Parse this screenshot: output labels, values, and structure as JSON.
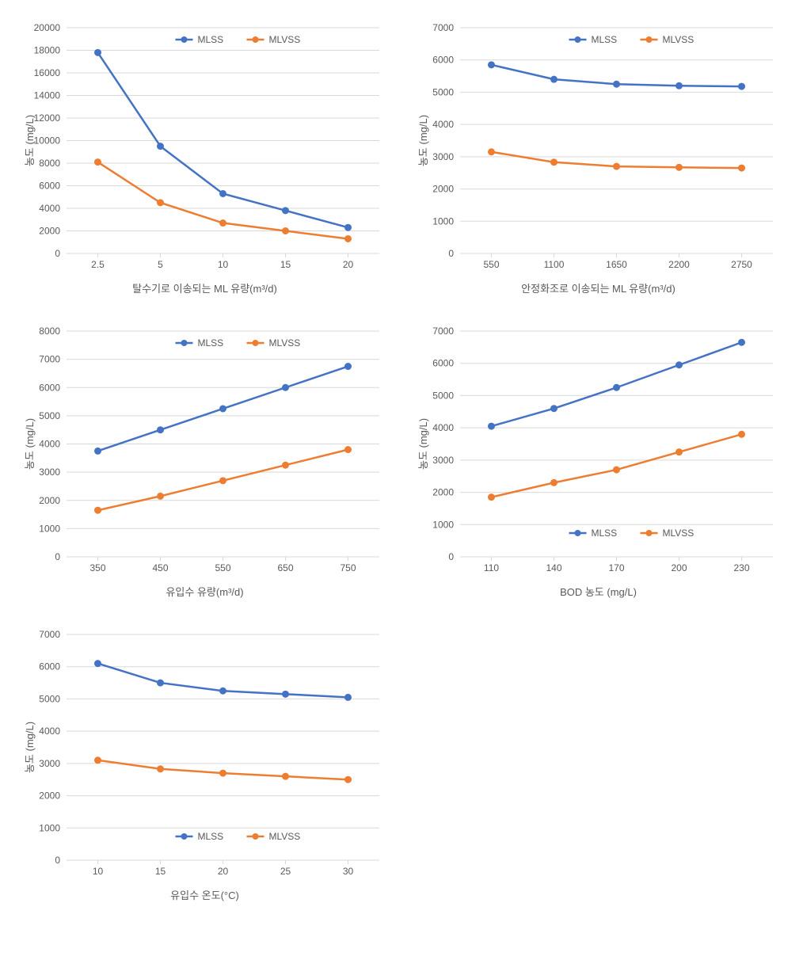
{
  "colors": {
    "mlss": "#4472c4",
    "mlvss": "#ed7d31",
    "grid": "#d9d9d9",
    "axis": "#d9d9d9",
    "text": "#595959",
    "background": "#ffffff"
  },
  "style": {
    "line_width": 2.5,
    "marker_radius": 4,
    "axis_font_size": 12,
    "title_font_size": 13,
    "legend_font_size": 12
  },
  "legend": {
    "mlss": "MLSS",
    "mlvss": "MLVSS"
  },
  "charts": [
    {
      "id": "chart1",
      "x_title": "탈수기로 이송되는 ML 유량(m³/d)",
      "y_title": "농도 (mg/L)",
      "x_categories": [
        "2.5",
        "5",
        "10",
        "15",
        "20"
      ],
      "y_min": 0,
      "y_max": 20000,
      "y_step": 2000,
      "legend_pos": "top",
      "series": {
        "mlss": [
          17800,
          9500,
          5300,
          3800,
          2300
        ],
        "mlvss": [
          8100,
          4500,
          2700,
          2000,
          1300
        ]
      }
    },
    {
      "id": "chart2",
      "x_title": "안정화조로 이송되는 ML 유량(m³/d)",
      "y_title": "농도 (mg/L)",
      "x_categories": [
        "550",
        "1100",
        "1650",
        "2200",
        "2750"
      ],
      "y_min": 0,
      "y_max": 7000,
      "y_step": 1000,
      "legend_pos": "top",
      "series": {
        "mlss": [
          5850,
          5400,
          5250,
          5200,
          5180
        ],
        "mlvss": [
          3150,
          2830,
          2700,
          2670,
          2650
        ]
      }
    },
    {
      "id": "chart3",
      "x_title": "유입수 유량(m³/d)",
      "y_title": "농도 (mg/L)",
      "x_categories": [
        "350",
        "450",
        "550",
        "650",
        "750"
      ],
      "y_min": 0,
      "y_max": 8000,
      "y_step": 1000,
      "legend_pos": "top",
      "series": {
        "mlss": [
          3750,
          4500,
          5250,
          6000,
          6750
        ],
        "mlvss": [
          1650,
          2150,
          2700,
          3250,
          3800
        ]
      }
    },
    {
      "id": "chart4",
      "x_title": "BOD 농도 (mg/L)",
      "y_title": "농도 (mg/L)",
      "x_categories": [
        "110",
        "140",
        "170",
        "200",
        "230"
      ],
      "y_min": 0,
      "y_max": 7000,
      "y_step": 1000,
      "legend_pos": "bottom",
      "series": {
        "mlss": [
          4050,
          4600,
          5250,
          5950,
          6650
        ],
        "mlvss": [
          1850,
          2300,
          2700,
          3250,
          3800
        ]
      }
    },
    {
      "id": "chart5",
      "x_title": "유입수 온도(°C)",
      "y_title": "농도 (mg/L)",
      "x_categories": [
        "10",
        "15",
        "20",
        "25",
        "30"
      ],
      "y_min": 0,
      "y_max": 7000,
      "y_step": 1000,
      "legend_pos": "bottom",
      "series": {
        "mlss": [
          6100,
          5500,
          5250,
          5150,
          5050
        ],
        "mlvss": [
          3100,
          2830,
          2700,
          2600,
          2500
        ]
      }
    }
  ]
}
